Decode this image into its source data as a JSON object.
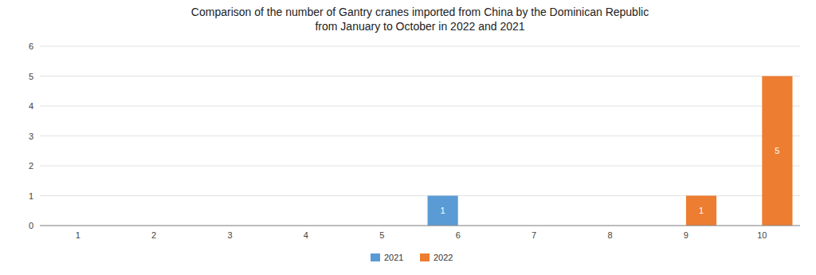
{
  "chart_data": {
    "type": "bar",
    "title": "Comparison of the number of Gantry cranes imported from China by the Dominican Republic\nfrom January to October in 2022 and 2021",
    "categories": [
      1,
      2,
      3,
      4,
      5,
      6,
      7,
      8,
      9,
      10
    ],
    "series": [
      {
        "name": "2021",
        "color": "#5B9BD5",
        "values": [
          0,
          0,
          0,
          0,
          0,
          1,
          0,
          0,
          0,
          0
        ]
      },
      {
        "name": "2022",
        "color": "#ED7D31",
        "values": [
          0,
          0,
          0,
          0,
          0,
          0,
          0,
          0,
          1,
          5
        ]
      }
    ],
    "ylim": [
      0,
      6
    ],
    "yticks": [
      0,
      1,
      2,
      3,
      4,
      5,
      6
    ],
    "grid": true,
    "legend": "bottom",
    "data_labels": true
  }
}
